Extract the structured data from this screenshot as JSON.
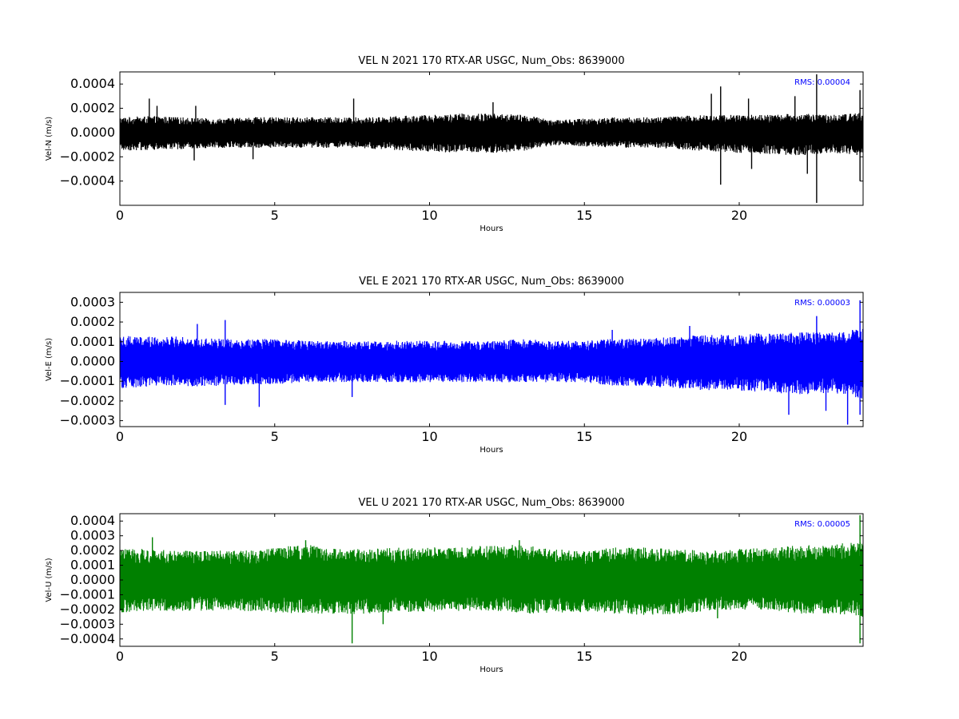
{
  "chart_data": [
    {
      "type": "line",
      "title": "VEL N 2021 170 RTX-AR  USGC, Num_Obs: 8639000",
      "xlabel": "Hours",
      "ylabel": "Vel-N (m/s)",
      "xlim": [
        0,
        24
      ],
      "ylim": [
        -0.0006,
        0.0005
      ],
      "xticks": [
        0,
        5,
        10,
        15,
        20
      ],
      "xtick_labels": [
        "0",
        "5",
        "10",
        "15",
        "20"
      ],
      "yticks": [
        0.0004,
        0.0002,
        0.0,
        -0.0002,
        -0.0004
      ],
      "ytick_labels": [
        "0.0004",
        "0.0002",
        "0.0000",
        "−0.0002",
        "−0.0004"
      ],
      "annotation": "RMS:  0.00004",
      "color": "#000000",
      "series": [
        {
          "hours": [
            0,
            1,
            2,
            3,
            4,
            5,
            6,
            7,
            8,
            9,
            10,
            11,
            12,
            13,
            14,
            15,
            16,
            17,
            18,
            19,
            20,
            21,
            22,
            23,
            24
          ],
          "upper": [
            0.00012,
            0.00013,
            0.00012,
            0.00011,
            0.00012,
            0.00012,
            0.00012,
            0.00012,
            0.00012,
            0.00013,
            0.00014,
            0.00015,
            0.00015,
            0.00014,
            0.0001,
            0.00011,
            0.00012,
            0.00012,
            0.00013,
            0.00014,
            0.00014,
            0.00014,
            0.00015,
            0.00014,
            0.00016
          ],
          "lower": [
            -0.00014,
            -0.00014,
            -0.00013,
            -0.00012,
            -0.00012,
            -0.00012,
            -0.00012,
            -0.00012,
            -0.00013,
            -0.00014,
            -0.00015,
            -0.00016,
            -0.00016,
            -0.00015,
            -0.0001,
            -0.00011,
            -0.00012,
            -0.00012,
            -0.00013,
            -0.00015,
            -0.00016,
            -0.00017,
            -0.00018,
            -0.00016,
            -0.00018
          ],
          "spikes": [
            [
              0.95,
              0.00028
            ],
            [
              1.2,
              0.00022
            ],
            [
              2.4,
              -0.00023
            ],
            [
              2.45,
              0.00022
            ],
            [
              4.3,
              -0.00022
            ],
            [
              7.55,
              0.00028
            ],
            [
              12.05,
              0.00025
            ],
            [
              19.4,
              0.00038
            ],
            [
              19.4,
              -0.00043
            ],
            [
              19.1,
              0.00032
            ],
            [
              20.3,
              0.00028
            ],
            [
              20.4,
              -0.0003
            ],
            [
              22.5,
              0.00048
            ],
            [
              22.5,
              -0.00058
            ],
            [
              22.2,
              -0.00034
            ],
            [
              21.8,
              0.0003
            ],
            [
              23.9,
              0.00035
            ],
            [
              23.9,
              -0.0004
            ]
          ]
        }
      ]
    },
    {
      "type": "line",
      "title": "VEL E 2021 170 RTX-AR  USGC, Num_Obs: 8639000",
      "xlabel": "Hours",
      "ylabel": "Vel-E (m/s)",
      "xlim": [
        0,
        24
      ],
      "ylim": [
        -0.00033,
        0.00035
      ],
      "xticks": [
        0,
        5,
        10,
        15,
        20
      ],
      "xtick_labels": [
        "0",
        "5",
        "10",
        "15",
        "20"
      ],
      "yticks": [
        0.0003,
        0.0002,
        0.0001,
        0.0,
        -0.0001,
        -0.0002,
        -0.0003
      ],
      "ytick_labels": [
        "0.0003",
        "0.0002",
        "0.0001",
        "0.0000",
        "−0.0001",
        "−0.0002",
        "−0.0003"
      ],
      "annotation": "RMS:  0.00003",
      "color": "#0000ff",
      "series": [
        {
          "hours": [
            0,
            1,
            2,
            3,
            4,
            5,
            6,
            7,
            8,
            9,
            10,
            11,
            12,
            13,
            14,
            15,
            16,
            17,
            18,
            19,
            20,
            21,
            22,
            23,
            24
          ],
          "upper": [
            0.00013,
            0.00012,
            0.00012,
            0.00011,
            0.00011,
            0.00011,
            0.0001,
            0.0001,
            0.0001,
            0.0001,
            0.0001,
            0.0001,
            0.0001,
            0.00011,
            0.0001,
            0.0001,
            0.00011,
            0.00011,
            0.00012,
            0.00013,
            0.00013,
            0.00014,
            0.00014,
            0.00014,
            0.00016
          ],
          "lower": [
            -0.00013,
            -0.00012,
            -0.00012,
            -0.00012,
            -0.00011,
            -0.00011,
            -0.0001,
            -0.0001,
            -0.0001,
            -0.0001,
            -0.0001,
            -0.0001,
            -0.0001,
            -0.0001,
            -0.0001,
            -0.0001,
            -0.00012,
            -0.00012,
            -0.00013,
            -0.00014,
            -0.00014,
            -0.00015,
            -0.00016,
            -0.00015,
            -0.00018
          ],
          "spikes": [
            [
              2.5,
              0.00019
            ],
            [
              3.4,
              0.00021
            ],
            [
              3.4,
              -0.00022
            ],
            [
              4.5,
              -0.00023
            ],
            [
              7.5,
              -0.00018
            ],
            [
              15.9,
              0.00016
            ],
            [
              18.4,
              0.00018
            ],
            [
              21.6,
              -0.00027
            ],
            [
              22.5,
              0.00023
            ],
            [
              22.8,
              -0.00025
            ],
            [
              23.9,
              0.00031
            ],
            [
              23.9,
              -0.00027
            ],
            [
              23.5,
              -0.00032
            ]
          ]
        }
      ]
    },
    {
      "type": "line",
      "title": "VEL U 2021 170 RTX-AR  USGC, Num_Obs: 8639000",
      "xlabel": "Hours",
      "ylabel": "Vel-U (m/s)",
      "xlim": [
        0,
        24
      ],
      "ylim": [
        -0.00045,
        0.00045
      ],
      "xticks": [
        0,
        5,
        10,
        15,
        20
      ],
      "xtick_labels": [
        "0",
        "5",
        "10",
        "15",
        "20"
      ],
      "yticks": [
        0.0004,
        0.0003,
        0.0002,
        0.0001,
        0.0,
        -0.0001,
        -0.0002,
        -0.0003,
        -0.0004
      ],
      "ytick_labels": [
        "0.0004",
        "0.0003",
        "0.0002",
        "0.0001",
        "0.0000",
        "−0.0001",
        "−0.0002",
        "−0.0003",
        "−0.0004"
      ],
      "annotation": "RMS:  0.00005",
      "color": "#008000",
      "series": [
        {
          "hours": [
            0,
            1,
            2,
            3,
            4,
            5,
            6,
            7,
            8,
            9,
            10,
            11,
            12,
            13,
            14,
            15,
            16,
            17,
            18,
            19,
            20,
            21,
            22,
            23,
            24
          ],
          "upper": [
            0.00021,
            0.0002,
            0.00019,
            0.00019,
            0.00019,
            0.00021,
            0.00023,
            0.0002,
            0.0002,
            0.00021,
            0.00021,
            0.00022,
            0.00022,
            0.00023,
            0.0002,
            0.00019,
            0.00021,
            0.00021,
            0.0002,
            0.00019,
            0.0002,
            0.00021,
            0.00023,
            0.00023,
            0.00025
          ],
          "lower": [
            -0.00021,
            -0.0002,
            -0.0002,
            -0.0002,
            -0.0002,
            -0.00021,
            -0.00022,
            -0.00022,
            -0.00022,
            -0.00021,
            -0.00021,
            -0.0002,
            -0.0002,
            -0.00022,
            -0.00021,
            -0.00021,
            -0.00022,
            -0.00023,
            -0.00022,
            -0.0002,
            -0.00019,
            -0.0002,
            -0.00022,
            -0.00022,
            -0.00024
          ],
          "spikes": [
            [
              1.05,
              0.00029
            ],
            [
              6.0,
              0.00027
            ],
            [
              7.5,
              -0.00043
            ],
            [
              8.5,
              -0.0003
            ],
            [
              12.9,
              0.00027
            ],
            [
              19.3,
              -0.00026
            ],
            [
              23.9,
              0.00044
            ],
            [
              23.9,
              -0.00043
            ]
          ]
        }
      ]
    }
  ]
}
